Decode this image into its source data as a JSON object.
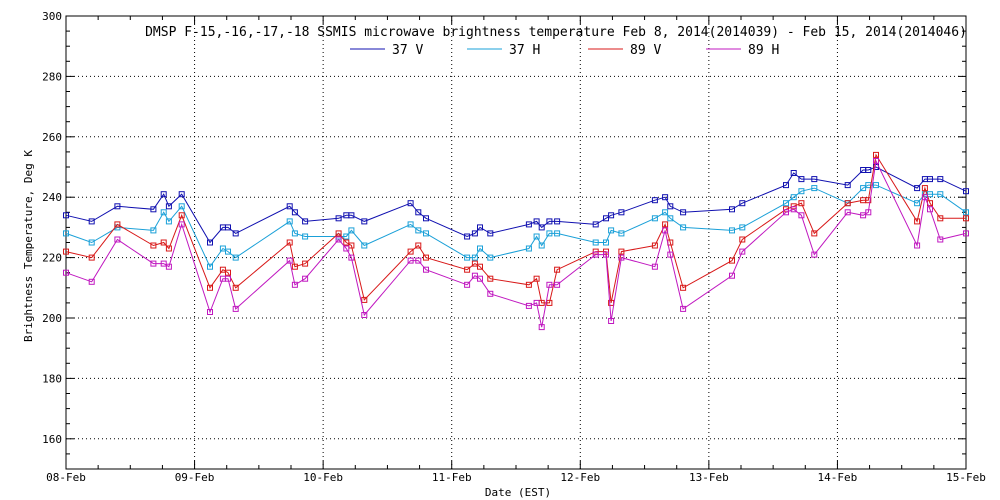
{
  "chart_data": {
    "type": "line",
    "title": "DMSP F-15,-16,-17,-18 SSMIS microwave brightness temperature Feb  8, 2014(2014039) - Feb 15, 2014(2014046)",
    "xlabel": "Date (EST)",
    "ylabel": "Brightness Temperature, Deg K",
    "ylim": [
      150,
      300
    ],
    "xlim": [
      0,
      7
    ],
    "yticks": [
      160,
      180,
      200,
      220,
      240,
      260,
      280,
      300
    ],
    "xticks": [
      0,
      1,
      2,
      3,
      4,
      5,
      6,
      7
    ],
    "xtick_labels": [
      "08-Feb",
      "09-Feb",
      "10-Feb",
      "11-Feb",
      "12-Feb",
      "13-Feb",
      "14-Feb",
      "15-Feb"
    ],
    "grid": true,
    "legend_position": "top",
    "series": [
      {
        "name": "37 V",
        "color": "#1010b0",
        "x": [
          0.0,
          0.2,
          0.4,
          0.68,
          0.76,
          0.8,
          0.9,
          1.12,
          1.22,
          1.26,
          1.32,
          1.74,
          1.78,
          1.86,
          2.12,
          2.18,
          2.22,
          2.32,
          2.68,
          2.74,
          2.8,
          3.12,
          3.18,
          3.22,
          3.3,
          3.6,
          3.66,
          3.7,
          3.76,
          3.82,
          4.12,
          4.2,
          4.24,
          4.32,
          4.58,
          4.66,
          4.7,
          4.8,
          5.18,
          5.26,
          5.6,
          5.66,
          5.72,
          5.82,
          6.08,
          6.2,
          6.24,
          6.3,
          6.62,
          6.68,
          6.72,
          6.8,
          7.0
        ],
        "y": [
          234,
          232,
          237,
          236,
          241,
          237,
          241,
          225,
          230,
          230,
          228,
          237,
          235,
          232,
          233,
          234,
          234,
          232,
          238,
          235,
          233,
          227,
          228,
          230,
          228,
          231,
          232,
          230,
          232,
          232,
          231,
          233,
          234,
          235,
          239,
          240,
          237,
          235,
          236,
          238,
          244,
          248,
          246,
          246,
          244,
          249,
          249,
          250,
          243,
          246,
          246,
          246,
          242
        ]
      },
      {
        "name": "37 H",
        "color": "#1aa0d8",
        "x": [
          0.0,
          0.2,
          0.4,
          0.68,
          0.76,
          0.8,
          0.9,
          1.12,
          1.22,
          1.26,
          1.32,
          1.74,
          1.78,
          1.86,
          2.12,
          2.18,
          2.22,
          2.32,
          2.68,
          2.74,
          2.8,
          3.12,
          3.18,
          3.22,
          3.3,
          3.6,
          3.66,
          3.7,
          3.76,
          3.82,
          4.12,
          4.2,
          4.24,
          4.32,
          4.58,
          4.66,
          4.7,
          4.8,
          5.18,
          5.26,
          5.6,
          5.66,
          5.72,
          5.82,
          6.08,
          6.2,
          6.24,
          6.3,
          6.62,
          6.68,
          6.72,
          6.8,
          7.0
        ],
        "y": [
          228,
          225,
          230,
          229,
          235,
          232,
          237,
          217,
          223,
          222,
          220,
          232,
          228,
          227,
          227,
          227,
          229,
          224,
          231,
          229,
          228,
          220,
          220,
          223,
          220,
          223,
          227,
          224,
          228,
          228,
          225,
          225,
          229,
          228,
          233,
          235,
          233,
          230,
          229,
          230,
          238,
          240,
          242,
          243,
          238,
          243,
          244,
          244,
          238,
          241,
          241,
          241,
          235
        ]
      },
      {
        "name": "89 V",
        "color": "#d81818",
        "x": [
          0.0,
          0.2,
          0.4,
          0.68,
          0.76,
          0.8,
          0.9,
          1.12,
          1.22,
          1.26,
          1.32,
          1.74,
          1.78,
          1.86,
          2.12,
          2.18,
          2.22,
          2.32,
          2.68,
          2.74,
          2.8,
          3.12,
          3.18,
          3.22,
          3.3,
          3.6,
          3.66,
          3.7,
          3.76,
          3.82,
          4.12,
          4.2,
          4.24,
          4.32,
          4.58,
          4.66,
          4.7,
          4.8,
          5.18,
          5.26,
          5.6,
          5.66,
          5.72,
          5.82,
          6.08,
          6.2,
          6.24,
          6.3,
          6.62,
          6.68,
          6.72,
          6.8,
          7.0
        ],
        "y": [
          222,
          220,
          231,
          224,
          225,
          223,
          234,
          210,
          216,
          215,
          210,
          225,
          217,
          218,
          228,
          225,
          224,
          206,
          222,
          224,
          220,
          216,
          218,
          217,
          213,
          211,
          213,
          205,
          205,
          216,
          222,
          222,
          205,
          222,
          224,
          231,
          225,
          210,
          219,
          226,
          236,
          237,
          238,
          228,
          238,
          239,
          239,
          254,
          232,
          243,
          238,
          233,
          233
        ]
      },
      {
        "name": "89 H",
        "color": "#c018c0",
        "x": [
          0.0,
          0.2,
          0.4,
          0.68,
          0.76,
          0.8,
          0.9,
          1.12,
          1.22,
          1.26,
          1.32,
          1.74,
          1.78,
          1.86,
          2.12,
          2.18,
          2.22,
          2.32,
          2.68,
          2.74,
          2.8,
          3.12,
          3.18,
          3.22,
          3.3,
          3.6,
          3.66,
          3.7,
          3.76,
          3.82,
          4.12,
          4.2,
          4.24,
          4.32,
          4.58,
          4.66,
          4.7,
          4.8,
          5.18,
          5.26,
          5.6,
          5.66,
          5.72,
          5.82,
          6.08,
          6.2,
          6.24,
          6.3,
          6.62,
          6.68,
          6.72,
          6.8,
          7.0
        ],
        "y": [
          215,
          212,
          226,
          218,
          218,
          217,
          231,
          202,
          213,
          213,
          203,
          219,
          211,
          213,
          226,
          223,
          220,
          201,
          219,
          219,
          216,
          211,
          214,
          213,
          208,
          204,
          205,
          197,
          211,
          211,
          221,
          221,
          199,
          220,
          217,
          229,
          221,
          203,
          214,
          222,
          235,
          236,
          234,
          221,
          235,
          234,
          235,
          252,
          224,
          240,
          236,
          226,
          228
        ]
      }
    ]
  }
}
